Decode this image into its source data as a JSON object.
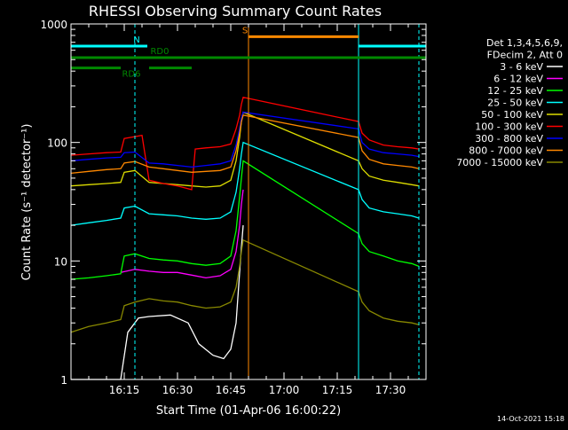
{
  "chart_data": {
    "type": "line",
    "title": "RHESSI Observing Summary Count Rates",
    "xlabel": "Start Time (01-Apr-06 16:00:22)",
    "ylabel": "Count Rate (s⁻¹ detector⁻¹)",
    "y_scale": "log",
    "ylim": [
      1,
      1000
    ],
    "xlim_minutes": [
      0,
      100
    ],
    "x_ticks": [
      {
        "label": "16:15",
        "min": 15
      },
      {
        "label": "16:30",
        "min": 30
      },
      {
        "label": "16:45",
        "min": 45
      },
      {
        "label": "17:00",
        "min": 60
      },
      {
        "label": "17:15",
        "min": 75
      },
      {
        "label": "17:30",
        "min": 90
      }
    ],
    "y_ticks": [
      {
        "label": "1",
        "value": 1
      },
      {
        "label": "10",
        "value": 10
      },
      {
        "label": "100",
        "value": 100
      },
      {
        "label": "1000",
        "value": 1000
      }
    ],
    "legend_header": [
      "Det 1,3,4,5,6,9,",
      "FDecim 2, Att 0"
    ],
    "legend_position": "right",
    "grid": false,
    "flags": [
      {
        "label": "N",
        "color": "#00ffff",
        "level": 650,
        "segments": [
          [
            0,
            21.5
          ],
          [
            81,
            100
          ]
        ],
        "label_at": 18.5
      },
      {
        "label": "RD0",
        "color": "#008800",
        "level": 520,
        "segments": [
          [
            0,
            100
          ]
        ],
        "label_at": 25
      },
      {
        "label": "RD6",
        "color": "#008800",
        "level": 425,
        "segments": [
          [
            0,
            14
          ],
          [
            22,
            34
          ]
        ],
        "label_at": 17
      },
      {
        "label": "S",
        "color": "#ff8800",
        "level": 780,
        "segments": [
          [
            50,
            81
          ]
        ],
        "label_at": 49
      }
    ],
    "markers": [
      {
        "min": 0,
        "color": "#00ffff",
        "style": "solid"
      },
      {
        "min": 18,
        "color": "#00ffff",
        "style": "dashed"
      },
      {
        "min": 50,
        "color": "#ff8800",
        "style": "solid"
      },
      {
        "min": 81,
        "color": "#00ffff",
        "style": "solid"
      },
      {
        "min": 98,
        "color": "#00ffff",
        "style": "dashed"
      }
    ],
    "series": [
      {
        "name": "3 - 6 keV",
        "color": "#ffffff",
        "points": [
          [
            0,
            1
          ],
          [
            14,
            1
          ],
          [
            16,
            2.5
          ],
          [
            19,
            3.3
          ],
          [
            22,
            3.4
          ],
          [
            28,
            3.5
          ],
          [
            33,
            3
          ],
          [
            36,
            2
          ],
          [
            40,
            1.6
          ],
          [
            43,
            1.5
          ],
          [
            45,
            1.8
          ],
          [
            46.5,
            3
          ],
          [
            47.5,
            8
          ],
          [
            48,
            13
          ],
          [
            48.5,
            20
          ]
        ]
      },
      {
        "name": "6 - 12 keV",
        "color": "#ff00ff",
        "points": [
          [
            14,
            8
          ],
          [
            18,
            8.5
          ],
          [
            22,
            8.2
          ],
          [
            26,
            8
          ],
          [
            30,
            8
          ],
          [
            34,
            7.6
          ],
          [
            38,
            7.2
          ],
          [
            42,
            7.5
          ],
          [
            45,
            8.5
          ],
          [
            46.5,
            12
          ],
          [
            47.5,
            20
          ],
          [
            48,
            30
          ],
          [
            48.5,
            40
          ]
        ]
      },
      {
        "name": "12 - 25 keV",
        "color": "#00ff00",
        "points": [
          [
            0,
            7
          ],
          [
            5,
            7.2
          ],
          [
            10,
            7.5
          ],
          [
            14,
            7.8
          ],
          [
            15,
            11
          ],
          [
            18,
            11.5
          ],
          [
            22,
            10.5
          ],
          [
            26,
            10.2
          ],
          [
            30,
            10
          ],
          [
            34,
            9.5
          ],
          [
            38,
            9.2
          ],
          [
            42,
            9.5
          ],
          [
            45,
            11
          ],
          [
            46.5,
            18
          ],
          [
            47.5,
            35
          ],
          [
            48,
            50
          ],
          [
            48.5,
            70
          ],
          [
            81,
            17
          ],
          [
            82,
            14
          ],
          [
            84,
            12
          ],
          [
            88,
            11
          ],
          [
            92,
            10
          ],
          [
            96,
            9.5
          ],
          [
            98,
            9
          ]
        ]
      },
      {
        "name": "25 - 50 keV",
        "color": "#00ffff",
        "points": [
          [
            0,
            20
          ],
          [
            5,
            21
          ],
          [
            10,
            22
          ],
          [
            14,
            23
          ],
          [
            15,
            28
          ],
          [
            18,
            29
          ],
          [
            22,
            25
          ],
          [
            26,
            24.5
          ],
          [
            30,
            24
          ],
          [
            34,
            23
          ],
          [
            38,
            22.5
          ],
          [
            42,
            23
          ],
          [
            45,
            26
          ],
          [
            46.5,
            38
          ],
          [
            47.5,
            60
          ],
          [
            48,
            80
          ],
          [
            48.5,
            100
          ],
          [
            81,
            40
          ],
          [
            82,
            33
          ],
          [
            84,
            28
          ],
          [
            88,
            26
          ],
          [
            92,
            25
          ],
          [
            96,
            24
          ],
          [
            98,
            23
          ]
        ]
      },
      {
        "name": "50 - 100 keV",
        "color": "#dddd00",
        "points": [
          [
            0,
            43
          ],
          [
            5,
            44
          ],
          [
            10,
            45
          ],
          [
            14,
            46
          ],
          [
            15,
            56
          ],
          [
            18,
            58
          ],
          [
            22,
            46
          ],
          [
            26,
            45
          ],
          [
            30,
            44
          ],
          [
            34,
            43
          ],
          [
            38,
            42
          ],
          [
            42,
            43
          ],
          [
            45,
            48
          ],
          [
            46.5,
            70
          ],
          [
            47.5,
            110
          ],
          [
            48,
            150
          ],
          [
            48.5,
            180
          ],
          [
            81,
            70
          ],
          [
            82,
            60
          ],
          [
            84,
            52
          ],
          [
            88,
            48
          ],
          [
            92,
            46
          ],
          [
            96,
            44
          ],
          [
            98,
            43
          ]
        ]
      },
      {
        "name": "100 - 300 keV",
        "color": "#ff0000",
        "points": [
          [
            0,
            78
          ],
          [
            5,
            80
          ],
          [
            10,
            82
          ],
          [
            14,
            83
          ],
          [
            15,
            108
          ],
          [
            18,
            112
          ],
          [
            20,
            115
          ],
          [
            22,
            48
          ],
          [
            26,
            45
          ],
          [
            30,
            43
          ],
          [
            34,
            40
          ],
          [
            35,
            88
          ],
          [
            38,
            90
          ],
          [
            42,
            92
          ],
          [
            45,
            97
          ],
          [
            46.5,
            130
          ],
          [
            47.5,
            170
          ],
          [
            48,
            210
          ],
          [
            48.5,
            240
          ],
          [
            81,
            150
          ],
          [
            82,
            120
          ],
          [
            84,
            105
          ],
          [
            88,
            95
          ],
          [
            92,
            92
          ],
          [
            96,
            90
          ],
          [
            98,
            88
          ]
        ]
      },
      {
        "name": "300 - 800 keV",
        "color": "#0000ff",
        "points": [
          [
            0,
            70
          ],
          [
            5,
            72
          ],
          [
            10,
            74
          ],
          [
            14,
            75
          ],
          [
            15,
            82
          ],
          [
            18,
            83
          ],
          [
            22,
            67
          ],
          [
            26,
            66
          ],
          [
            30,
            64
          ],
          [
            34,
            62
          ],
          [
            38,
            64
          ],
          [
            42,
            66
          ],
          [
            45,
            70
          ],
          [
            46.5,
            95
          ],
          [
            47.5,
            130
          ],
          [
            48,
            160
          ],
          [
            48.5,
            180
          ],
          [
            81,
            130
          ],
          [
            82,
            100
          ],
          [
            84,
            88
          ],
          [
            88,
            82
          ],
          [
            92,
            80
          ],
          [
            96,
            78
          ],
          [
            98,
            76
          ]
        ]
      },
      {
        "name": "800 - 7000 keV",
        "color": "#ff8800",
        "points": [
          [
            0,
            55
          ],
          [
            5,
            57
          ],
          [
            10,
            59
          ],
          [
            14,
            60
          ],
          [
            15,
            67
          ],
          [
            18,
            69
          ],
          [
            22,
            62
          ],
          [
            26,
            60
          ],
          [
            30,
            58
          ],
          [
            34,
            56
          ],
          [
            38,
            57
          ],
          [
            42,
            58
          ],
          [
            45,
            62
          ],
          [
            46.5,
            85
          ],
          [
            47.5,
            120
          ],
          [
            48,
            150
          ],
          [
            48.5,
            170
          ],
          [
            81,
            110
          ],
          [
            82,
            85
          ],
          [
            84,
            72
          ],
          [
            88,
            66
          ],
          [
            92,
            64
          ],
          [
            96,
            62
          ],
          [
            98,
            60
          ]
        ]
      },
      {
        "name": "7000 - 15000 keV",
        "color": "#888800",
        "points": [
          [
            0,
            2.5
          ],
          [
            5,
            2.8
          ],
          [
            10,
            3
          ],
          [
            14,
            3.2
          ],
          [
            15,
            4.2
          ],
          [
            18,
            4.5
          ],
          [
            22,
            4.8
          ],
          [
            26,
            4.6
          ],
          [
            30,
            4.5
          ],
          [
            34,
            4.2
          ],
          [
            38,
            4
          ],
          [
            42,
            4.1
          ],
          [
            45,
            4.5
          ],
          [
            46.5,
            6
          ],
          [
            47.5,
            9
          ],
          [
            48,
            12
          ],
          [
            48.5,
            15
          ],
          [
            81,
            5.5
          ],
          [
            82,
            4.5
          ],
          [
            84,
            3.8
          ],
          [
            88,
            3.3
          ],
          [
            92,
            3.1
          ],
          [
            96,
            3
          ],
          [
            98,
            2.9
          ]
        ]
      }
    ]
  },
  "footer": {
    "timestamp": "14-Oct-2021 15:18"
  }
}
